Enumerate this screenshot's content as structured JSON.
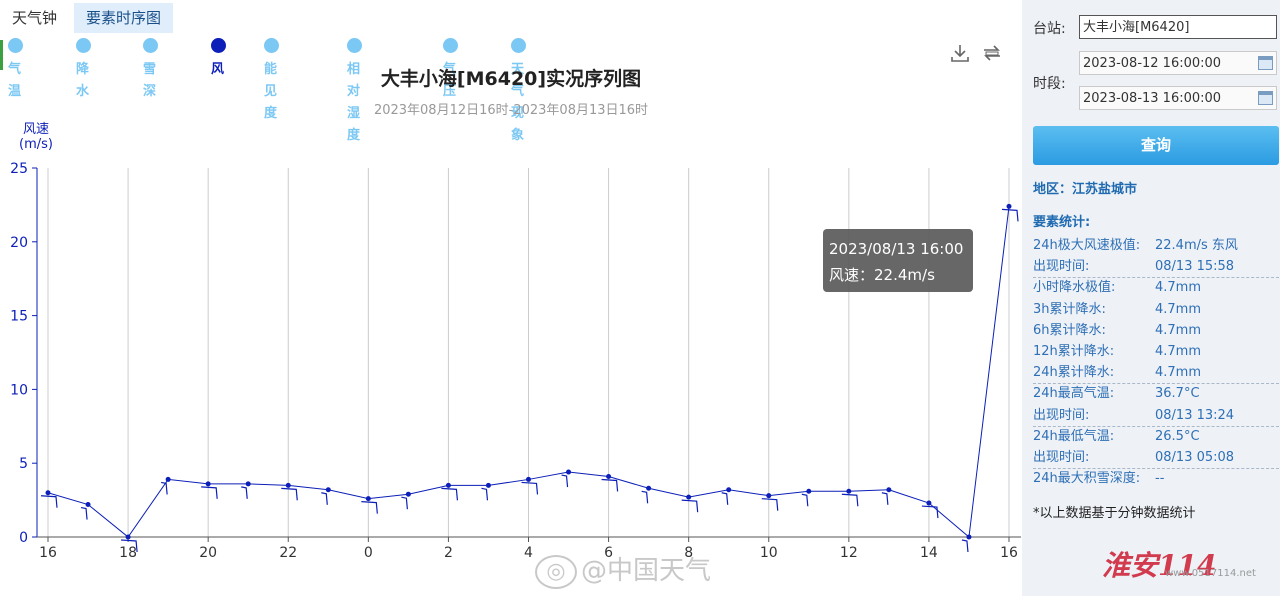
{
  "tabs": [
    "天气钟",
    "要素时序图"
  ],
  "legend": [
    "气温",
    "降水",
    "雪深",
    "风",
    "能见度",
    "相对湿度",
    "气压",
    "天气现象"
  ],
  "legend_active": "风",
  "colors": {
    "series": "#0c1fb8",
    "legend_inactive": "#7cc8f4",
    "axis": "#0c1fb8",
    "grid": "#cccccc"
  },
  "tooltip": {
    "time": "2023/08/13 16:00",
    "label": "风速：22.4m/s"
  },
  "watermark": "@中国天气",
  "chart_data": {
    "type": "line",
    "title": "大丰小海[M6420]实况序列图",
    "subtitle": "2023年08月12日16时-2023年08月13日16时",
    "ylabel": "风速\n(m/s)",
    "ylim": [
      0,
      25
    ],
    "yticks": [
      0,
      5,
      10,
      15,
      20,
      25
    ],
    "xticks": [
      "16",
      "18",
      "20",
      "22",
      "0",
      "2",
      "4",
      "6",
      "8",
      "10",
      "12",
      "14",
      "16"
    ],
    "grid": "vertical",
    "x": [
      "16",
      "17",
      "18",
      "19",
      "20",
      "21",
      "22",
      "23",
      "0",
      "1",
      "2",
      "3",
      "4",
      "5",
      "6",
      "7",
      "8",
      "9",
      "10",
      "11",
      "12",
      "13",
      "14",
      "15",
      "16"
    ],
    "series": [
      {
        "values": [
          3.0,
          2.2,
          0.0,
          3.9,
          3.6,
          3.6,
          3.5,
          3.2,
          2.6,
          2.9,
          3.5,
          3.5,
          3.9,
          4.4,
          4.1,
          3.3,
          2.7,
          3.2,
          2.8,
          3.1,
          3.1,
          3.2,
          2.3,
          0.0,
          22.4
        ]
      }
    ]
  },
  "sidebar": {
    "station_label": "台站:",
    "station_value": "大丰小海[M6420]",
    "period_label": "时段:",
    "start": "2023-08-12 16:00:00",
    "end": "2023-08-13 16:00:00",
    "query": "查询",
    "region": "地区：江苏盐城市",
    "stats_title": "要素统计:",
    "stats": [
      {
        "k": "24h极大风速极值:",
        "v": "22.4m/s 东风"
      },
      {
        "k": "出现时间:",
        "v": "08/13 15:58"
      },
      {
        "k": "小时降水极值:",
        "v": "4.7mm"
      },
      {
        "k": "3h累计降水:",
        "v": "4.7mm"
      },
      {
        "k": "6h累计降水:",
        "v": "4.7mm"
      },
      {
        "k": "12h累计降水:",
        "v": "4.7mm"
      },
      {
        "k": "24h累计降水:",
        "v": "4.7mm"
      },
      {
        "k": "24h最高气温:",
        "v": "36.7°C"
      },
      {
        "k": "出现时间:",
        "v": "08/13 13:24"
      },
      {
        "k": "24h最低气温:",
        "v": "26.5°C"
      },
      {
        "k": "出现时间:",
        "v": "08/13 05:08"
      },
      {
        "k": "24h最大积雪深度:",
        "v": "--"
      }
    ],
    "note": "*以上数据基于分钟数据统计"
  },
  "logo": {
    "text": "淮安",
    "num": "114",
    "url": "www.0517114.net"
  }
}
